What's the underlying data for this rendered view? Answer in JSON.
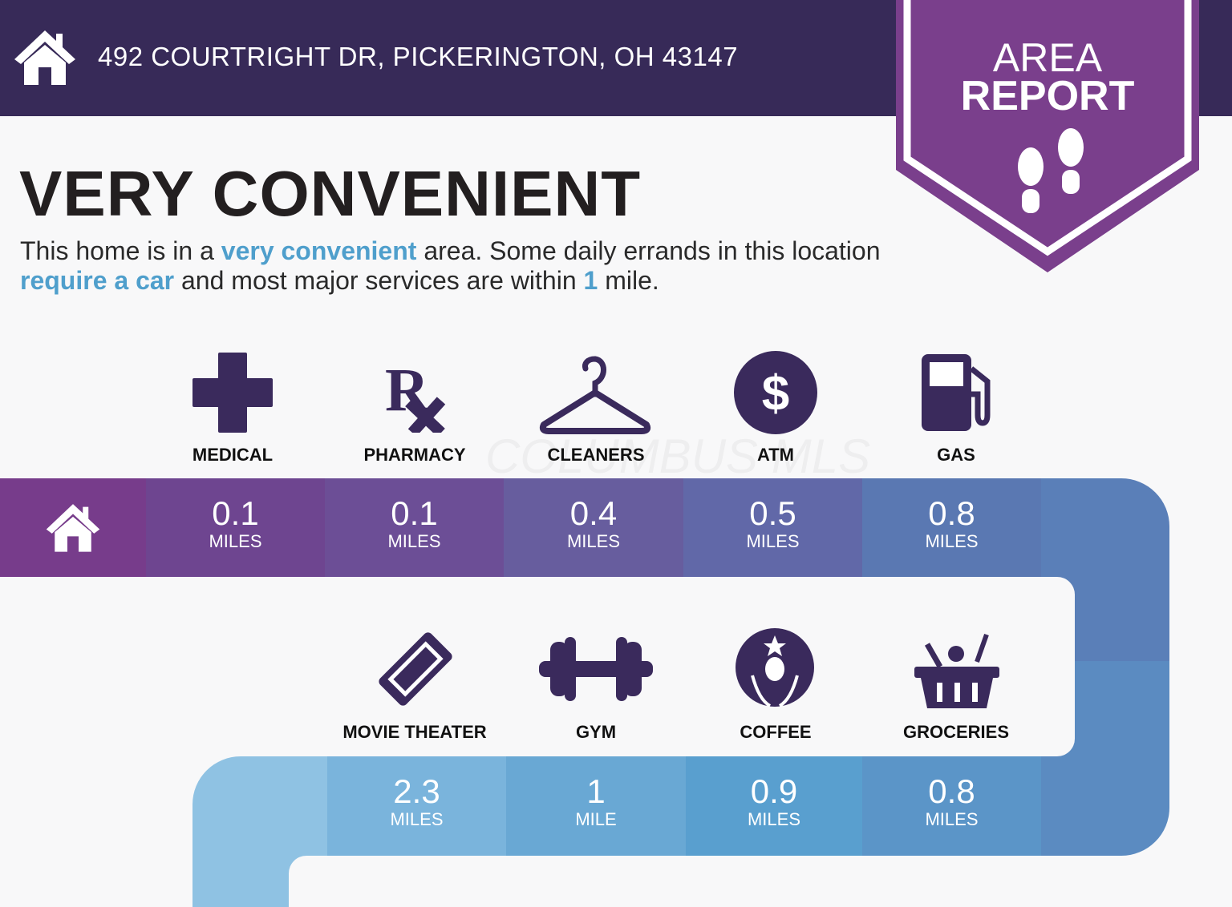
{
  "header": {
    "address": "492 COURTRIGHT DR, PICKERINGTON, OH 43147",
    "home_icon": "house-icon",
    "background": "#372a58"
  },
  "badge": {
    "line1": "AREA",
    "line2": "REPORT",
    "icon": "footprints-icon",
    "color": "#7a3f8c"
  },
  "headline": "VERY CONVENIENT",
  "description": {
    "p1": "This home is in a ",
    "h1": "very convenient",
    "p2": " area. Some daily errands in this location ",
    "h2": "require a car",
    "p3": " and most major services are within ",
    "h3": "1",
    "p4": " mile."
  },
  "watermark": "COLUMBUS MLS",
  "amenities": [
    {
      "label": "MEDICAL",
      "icon": "medical-cross-icon",
      "distance": "0.1",
      "unit": "MILES"
    },
    {
      "label": "PHARMACY",
      "icon": "rx-icon",
      "distance": "0.1",
      "unit": "MILES"
    },
    {
      "label": "CLEANERS",
      "icon": "hanger-icon",
      "distance": "0.4",
      "unit": "MILES"
    },
    {
      "label": "ATM",
      "icon": "dollar-icon",
      "distance": "0.5",
      "unit": "MILES"
    },
    {
      "label": "GAS",
      "icon": "gas-pump-icon",
      "distance": "0.8",
      "unit": "MILES"
    },
    {
      "label": "MOVIE THEATER",
      "icon": "ticket-icon",
      "distance": "2.3",
      "unit": "MILES"
    },
    {
      "label": "GYM",
      "icon": "dumbbell-icon",
      "distance": "1",
      "unit": "MILE"
    },
    {
      "label": "COFFEE",
      "icon": "starbucks-logo-icon",
      "distance": "0.9",
      "unit": "MILES"
    },
    {
      "label": "GROCERIES",
      "icon": "grocery-basket-icon",
      "distance": "0.8",
      "unit": "MILES"
    }
  ],
  "colors": {
    "icon": "#3a2a5c",
    "accent": "#4f9fcc"
  }
}
